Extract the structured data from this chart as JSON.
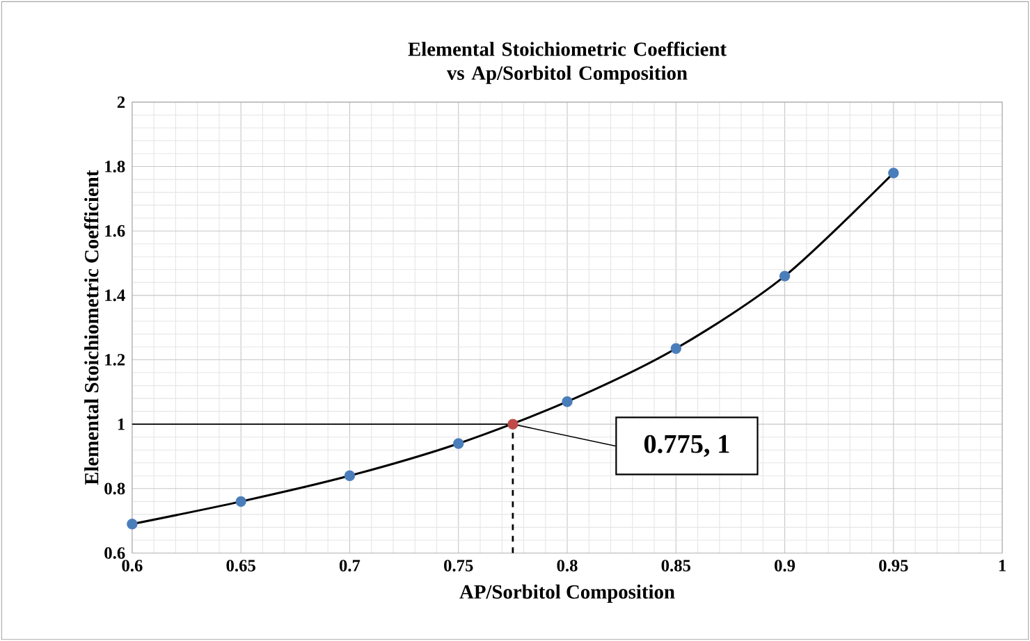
{
  "chart_data": {
    "type": "line",
    "title": "Elemental Stoichiometric Coefficient vs Ap/Sorbitol Composition",
    "xlabel": "AP/Sorbitol Composition",
    "ylabel": "Elemental Stoichiometric Coefficient",
    "x": [
      0.6,
      0.65,
      0.7,
      0.75,
      0.8,
      0.85,
      0.9,
      0.95
    ],
    "series": [
      {
        "type": "line",
        "color": "#000000",
        "marker": "none",
        "values": [
          0.69,
          0.76,
          0.84,
          0.94,
          1.07,
          1.235,
          1.46,
          1.78
        ]
      },
      {
        "type": "scatter",
        "color": "#4a7ebb",
        "marker": "circle",
        "values": [
          0.69,
          0.76,
          0.84,
          0.94,
          1.07,
          1.235,
          1.46,
          1.78
        ]
      },
      {
        "type": "scatter",
        "color": "#be4b48",
        "marker": "circle",
        "x": [
          0.775
        ],
        "values": [
          1
        ]
      }
    ],
    "xlim": [
      0.6,
      1
    ],
    "xticks": [
      0.6,
      0.65,
      0.7,
      0.75,
      0.8,
      0.85,
      0.9,
      0.95,
      1
    ],
    "ylim": [
      0.6,
      2
    ],
    "yticks": [
      0.6,
      0.8,
      1,
      1.2,
      1.4,
      1.6,
      1.8,
      2
    ],
    "grid": true,
    "ref_lines": [
      {
        "axis": "y",
        "value": 1,
        "color": "#000000",
        "line_style": "solid"
      },
      {
        "axis": "x",
        "value": 0.775,
        "color": "#000000",
        "line_style": "dashed"
      }
    ],
    "annotations": [
      {
        "text": "0.775, 1",
        "x": 0.775,
        "y": 1
      }
    ]
  }
}
